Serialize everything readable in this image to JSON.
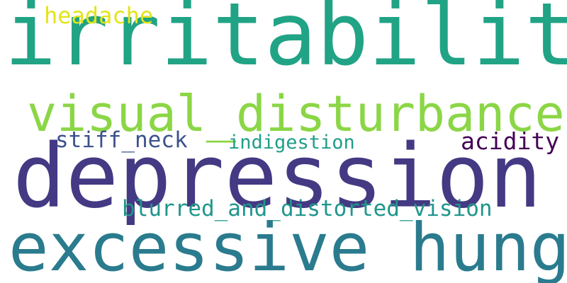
{
  "word_cloud": {
    "words": [
      {
        "id": "irritability",
        "text": "irritability",
        "color": "#21a385"
      },
      {
        "id": "depression",
        "text": "depression",
        "color": "#443983"
      },
      {
        "id": "excessive_hunger",
        "text": "excessive_hunger",
        "color": "#2a7b8e"
      },
      {
        "id": "visual_disturbances",
        "text": "visual_disturbances",
        "color": "#8bd646"
      },
      {
        "id": "headache",
        "text": "headache",
        "color": "#e4e419"
      },
      {
        "id": "stiff_neck",
        "text": "stiff_neck",
        "color": "#3b528b"
      },
      {
        "id": "indigestion",
        "text": "indigestion",
        "color": "#1f9e89"
      },
      {
        "id": "acidity",
        "text": "acidity",
        "color": "#440154"
      },
      {
        "id": "blurred_and_distorted_vision",
        "text": "blurred_and_distorted_vision",
        "color": "#1f968b"
      }
    ]
  }
}
